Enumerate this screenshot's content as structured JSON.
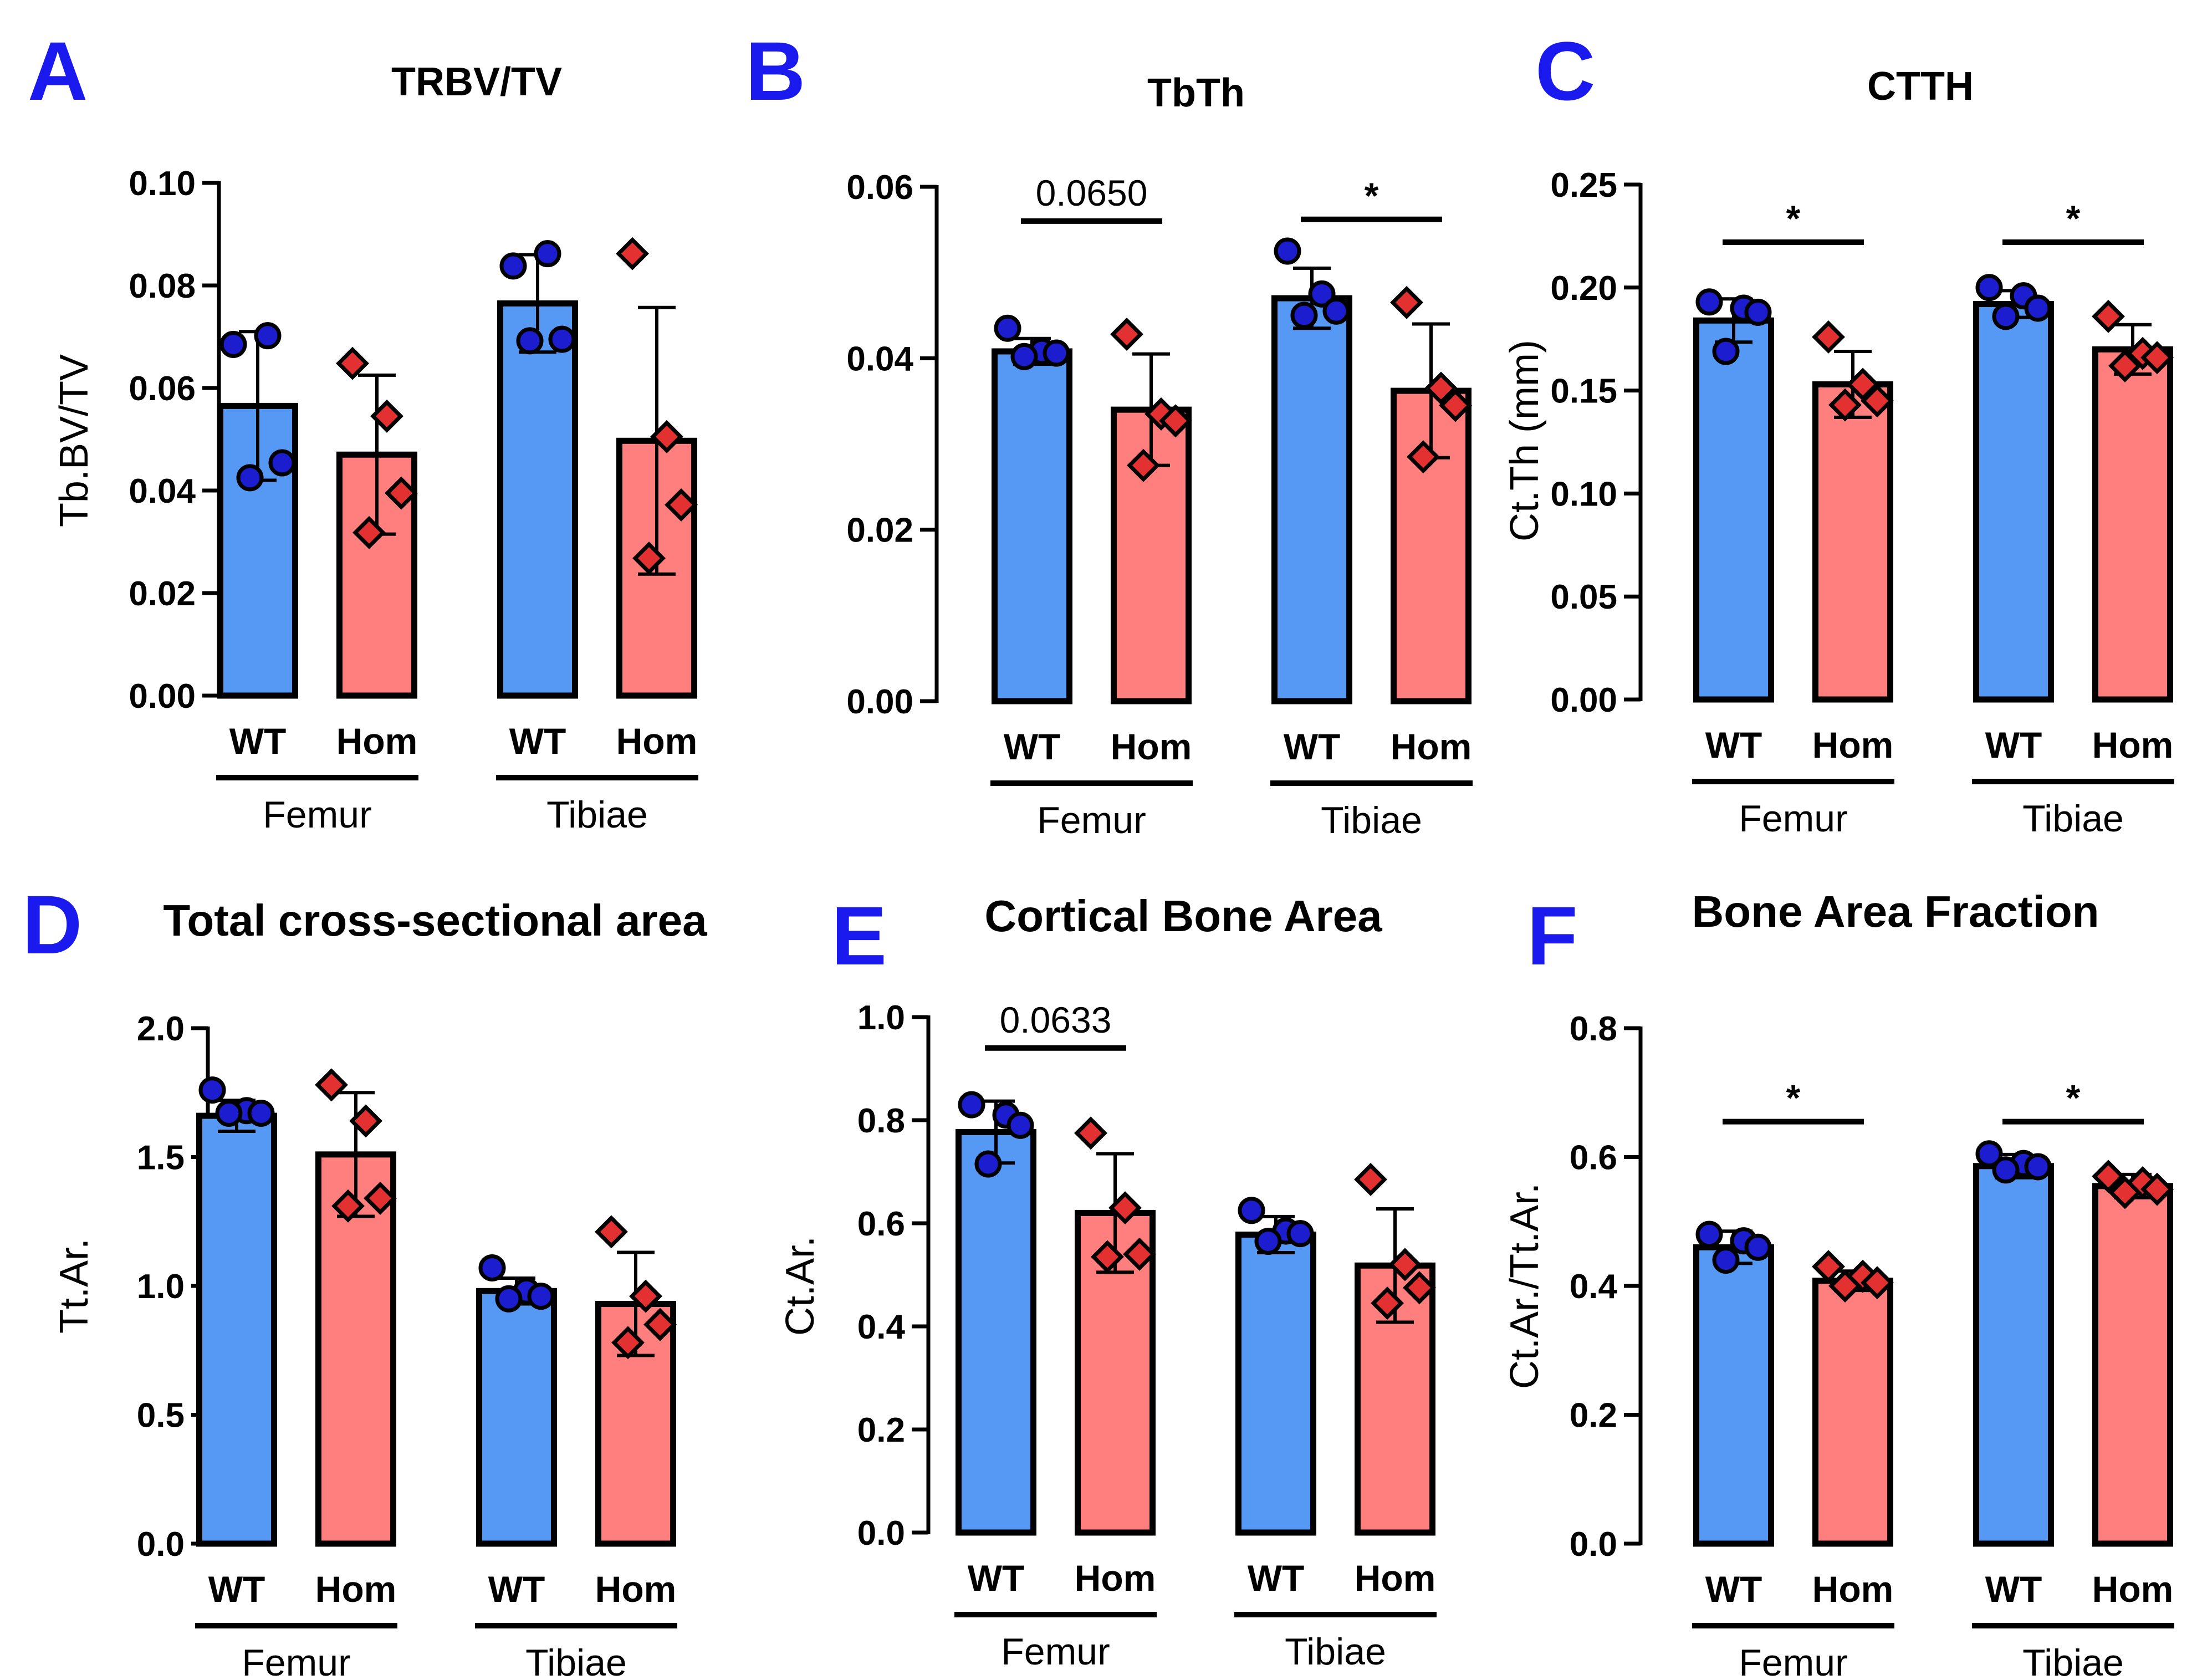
{
  "colors": {
    "wt_fill": "#5599f5",
    "hom_fill": "#ff7f7f",
    "wt_point": "#1d1dd0",
    "hom_point": "#e33030",
    "letter": "#1a1aee",
    "ink": "#000000"
  },
  "chart_data": [
    {
      "type": "bar",
      "letter": "A",
      "title": "TRBV/TV",
      "ylabel": "Tb.BV/TV",
      "ylim": [
        0,
        0.1
      ],
      "ticks": [
        "0.00",
        "0.02",
        "0.04",
        "0.06",
        "0.08",
        "0.10"
      ],
      "categories": [
        "WT",
        "Hom",
        "WT",
        "Hom"
      ],
      "groups": [
        "Femur",
        "Tibiae"
      ],
      "series": [
        {
          "name": "Femur WT",
          "mean": 0.0565,
          "sd": 0.0145,
          "points": [
            0.0685,
            0.0702,
            0.0454,
            0.0425
          ]
        },
        {
          "name": "Femur Hom",
          "mean": 0.047,
          "sd": 0.0155,
          "points": [
            0.0648,
            0.0545,
            0.0395,
            0.0318
          ]
        },
        {
          "name": "Tibiae WT",
          "mean": 0.0765,
          "sd": 0.0095,
          "points": [
            0.0838,
            0.0862,
            0.0695,
            0.0692
          ]
        },
        {
          "name": "Tibiae Hom",
          "mean": 0.0497,
          "sd": 0.026,
          "points": [
            0.0862,
            0.0505,
            0.0372,
            0.0268
          ]
        }
      ],
      "annotations": []
    },
    {
      "type": "bar",
      "letter": "B",
      "title": "TbTh",
      "ylabel": "",
      "ylim": [
        0,
        0.06
      ],
      "ticks": [
        "0.00",
        "0.02",
        "0.04",
        "0.06"
      ],
      "categories": [
        "WT",
        "Hom",
        "WT",
        "Hom"
      ],
      "groups": [
        "Femur",
        "Tibiae"
      ],
      "series": [
        {
          "name": "Femur WT",
          "mean": 0.0408,
          "sd": 0.0015,
          "points": [
            0.0435,
            0.0408,
            0.0406,
            0.0402
          ]
        },
        {
          "name": "Femur Hom",
          "mean": 0.034,
          "sd": 0.0065,
          "points": [
            0.0428,
            0.0335,
            0.0327,
            0.0275
          ]
        },
        {
          "name": "Tibiae WT",
          "mean": 0.047,
          "sd": 0.0035,
          "points": [
            0.0525,
            0.0475,
            0.0455,
            0.045
          ]
        },
        {
          "name": "Tibiae Hom",
          "mean": 0.0362,
          "sd": 0.0078,
          "points": [
            0.0465,
            0.0365,
            0.0345,
            0.0285
          ]
        }
      ],
      "annotations": [
        {
          "text": "0.0650",
          "from": 0,
          "to": 1,
          "y": 0.056
        },
        {
          "text": "*",
          "from": 2,
          "to": 3,
          "y": 0.0562
        }
      ]
    },
    {
      "type": "bar",
      "letter": "C",
      "title": "CTTH",
      "ylabel": "Ct.Th (mm)",
      "ylim": [
        0,
        0.25
      ],
      "ticks": [
        "0.00",
        "0.05",
        "0.10",
        "0.15",
        "0.20",
        "0.25"
      ],
      "categories": [
        "WT",
        "Hom",
        "WT",
        "Hom"
      ],
      "groups": [
        "Femur",
        "Tibiae"
      ],
      "series": [
        {
          "name": "Femur WT",
          "mean": 0.184,
          "sd": 0.0105,
          "points": [
            0.193,
            0.19,
            0.188,
            0.169
          ]
        },
        {
          "name": "Femur Hom",
          "mean": 0.153,
          "sd": 0.016,
          "points": [
            0.176,
            0.153,
            0.145,
            0.143
          ]
        },
        {
          "name": "Tibiae WT",
          "mean": 0.192,
          "sd": 0.0065,
          "points": [
            0.2,
            0.196,
            0.19,
            0.186
          ]
        },
        {
          "name": "Tibiae Hom",
          "mean": 0.17,
          "sd": 0.012,
          "points": [
            0.186,
            0.168,
            0.166,
            0.162
          ]
        }
      ],
      "annotations": [
        {
          "text": "*",
          "from": 0,
          "to": 1,
          "y": 0.222
        },
        {
          "text": "*",
          "from": 2,
          "to": 3,
          "y": 0.222
        }
      ]
    },
    {
      "type": "bar",
      "letter": "D",
      "title": "Total cross-sectional area",
      "ylabel": "Tt.Ar.",
      "ylim": [
        0,
        2.0
      ],
      "ticks": [
        "0.0",
        "0.5",
        "1.0",
        "1.5",
        "2.0"
      ],
      "categories": [
        "WT",
        "Hom",
        "WT",
        "Hom"
      ],
      "groups": [
        "Femur",
        "Tibiae"
      ],
      "series": [
        {
          "name": "Femur WT",
          "mean": 1.66,
          "sd": 0.06,
          "points": [
            1.76,
            1.68,
            1.67,
            1.67
          ]
        },
        {
          "name": "Femur Hom",
          "mean": 1.51,
          "sd": 0.24,
          "points": [
            1.78,
            1.64,
            1.34,
            1.31
          ]
        },
        {
          "name": "Tibiae WT",
          "mean": 0.98,
          "sd": 0.05,
          "points": [
            1.07,
            0.98,
            0.96,
            0.95
          ]
        },
        {
          "name": "Tibiae Hom",
          "mean": 0.93,
          "sd": 0.2,
          "points": [
            1.21,
            0.96,
            0.85,
            0.78
          ]
        }
      ],
      "annotations": []
    },
    {
      "type": "bar",
      "letter": "E",
      "title": "Cortical Bone Area",
      "ylabel": "Ct.Ar.",
      "ylim": [
        0,
        1.0
      ],
      "ticks": [
        "0.0",
        "0.2",
        "0.4",
        "0.6",
        "0.8",
        "1.0"
      ],
      "categories": [
        "WT",
        "Hom",
        "WT",
        "Hom"
      ],
      "groups": [
        "Femur",
        "Tibiae"
      ],
      "series": [
        {
          "name": "Femur WT",
          "mean": 0.777,
          "sd": 0.06,
          "points": [
            0.83,
            0.81,
            0.79,
            0.715
          ]
        },
        {
          "name": "Femur Hom",
          "mean": 0.62,
          "sd": 0.115,
          "points": [
            0.775,
            0.63,
            0.54,
            0.535
          ]
        },
        {
          "name": "Tibiae WT",
          "mean": 0.578,
          "sd": 0.035,
          "points": [
            0.625,
            0.585,
            0.58,
            0.565
          ]
        },
        {
          "name": "Tibiae Hom",
          "mean": 0.518,
          "sd": 0.11,
          "points": [
            0.685,
            0.52,
            0.475,
            0.445
          ]
        }
      ],
      "annotations": [
        {
          "text": "0.0633",
          "from": 0,
          "to": 1,
          "y": 0.94
        }
      ]
    },
    {
      "type": "bar",
      "letter": "F",
      "title": "Bone Area Fraction",
      "ylabel": "Ct.Ar./Tt.Ar.",
      "ylim": [
        0,
        0.8
      ],
      "ticks": [
        "0.0",
        "0.2",
        "0.4",
        "0.6",
        "0.8"
      ],
      "categories": [
        "WT",
        "Hom",
        "WT",
        "Hom"
      ],
      "groups": [
        "Femur",
        "Tibiae"
      ],
      "series": [
        {
          "name": "Femur WT",
          "mean": 0.46,
          "sd": 0.025,
          "points": [
            0.48,
            0.47,
            0.46,
            0.44
          ]
        },
        {
          "name": "Femur Hom",
          "mean": 0.408,
          "sd": 0.015,
          "points": [
            0.43,
            0.415,
            0.405,
            0.4
          ]
        },
        {
          "name": "Tibiae WT",
          "mean": 0.586,
          "sd": 0.018,
          "points": [
            0.605,
            0.59,
            0.585,
            0.58
          ]
        },
        {
          "name": "Tibiae Hom",
          "mean": 0.555,
          "sd": 0.018,
          "points": [
            0.57,
            0.56,
            0.55,
            0.545
          ]
        }
      ],
      "annotations": [
        {
          "text": "*",
          "from": 0,
          "to": 1,
          "y": 0.655
        },
        {
          "text": "*",
          "from": 2,
          "to": 3,
          "y": 0.655
        }
      ]
    }
  ]
}
